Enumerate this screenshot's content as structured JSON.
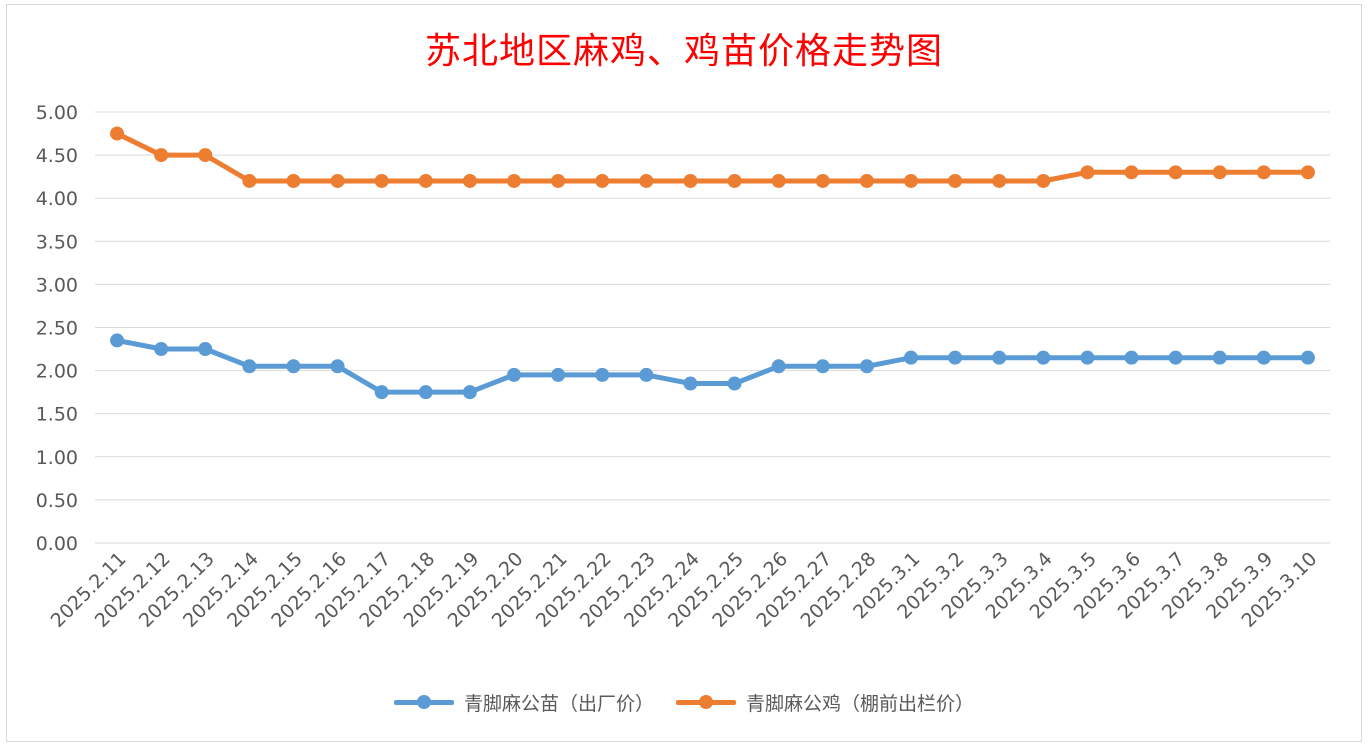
{
  "chart_data": {
    "type": "line",
    "title": "苏北地区麻鸡、鸡苗价格走势图",
    "xlabel": "",
    "ylabel": "",
    "ylim": [
      0,
      5
    ],
    "y_ticks": [
      "0.00",
      "0.50",
      "1.00",
      "1.50",
      "2.00",
      "2.50",
      "3.00",
      "3.50",
      "4.00",
      "4.50",
      "5.00"
    ],
    "grid": true,
    "legend_position": "bottom",
    "categories": [
      "2025.2.11",
      "2025.2.12",
      "2025.2.13",
      "2025.2.14",
      "2025.2.15",
      "2025.2.16",
      "2025.2.17",
      "2025.2.18",
      "2025.2.19",
      "2025.2.20",
      "2025.2.21",
      "2025.2.22",
      "2025.2.23",
      "2025.2.24",
      "2025.2.25",
      "2025.2.26",
      "2025.2.27",
      "2025.2.28",
      "2025.3.1",
      "2025.3.2",
      "2025.3.3",
      "2025.3.4",
      "2025.3.5",
      "2025.3.6",
      "2025.3.7",
      "2025.3.8",
      "2025.3.9",
      "2025.3.10"
    ],
    "series": [
      {
        "name": "青脚麻公苗（出厂价）",
        "color": "#5b9bd5",
        "values": [
          2.35,
          2.25,
          2.25,
          2.05,
          2.05,
          2.05,
          1.75,
          1.75,
          1.75,
          1.95,
          1.95,
          1.95,
          1.95,
          1.85,
          1.85,
          2.05,
          2.05,
          2.05,
          2.15,
          2.15,
          2.15,
          2.15,
          2.15,
          2.15,
          2.15,
          2.15,
          2.15,
          2.15
        ]
      },
      {
        "name": "青脚麻公鸡（棚前出栏价）",
        "color": "#ed7d31",
        "values": [
          4.75,
          4.5,
          4.5,
          4.2,
          4.2,
          4.2,
          4.2,
          4.2,
          4.2,
          4.2,
          4.2,
          4.2,
          4.2,
          4.2,
          4.2,
          4.2,
          4.2,
          4.2,
          4.2,
          4.2,
          4.2,
          4.2,
          4.3,
          4.3,
          4.3,
          4.3,
          4.3,
          4.3
        ]
      }
    ]
  },
  "colors": {
    "title": "#ff0000",
    "gridline": "#d9d9d9",
    "tick_text": "#595959"
  }
}
